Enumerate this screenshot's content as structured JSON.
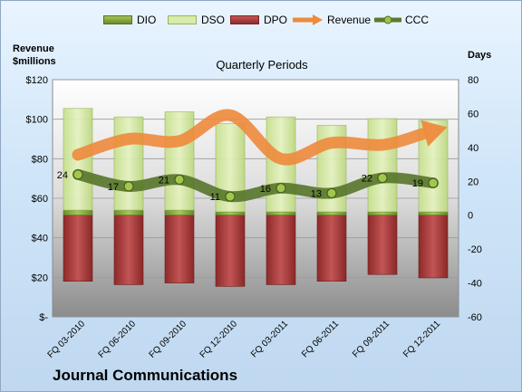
{
  "company": "Journal Communications",
  "chart_data": {
    "type": "bar",
    "title": "Quarterly Periods",
    "y_left_title": [
      "Revenue",
      "$millions"
    ],
    "y_right_title": "Days",
    "y_left_ticks": [
      "$120",
      "$100",
      "$80",
      "$60",
      "$40",
      "$20",
      "$-"
    ],
    "y_right_ticks": [
      "80",
      "60",
      "40",
      "20",
      "0",
      "-20",
      "-40",
      "-60"
    ],
    "y_left_range": [
      0,
      120
    ],
    "y_right_range": [
      -60,
      80
    ],
    "categories": [
      "FQ 03-2010",
      "FQ 06-2010",
      "FQ 09-2010",
      "FQ 12-2010",
      "FQ 03-2011",
      "FQ 06-2011",
      "FQ 09-2011",
      "FQ 12-2011"
    ],
    "legend": [
      "DIO",
      "DSO",
      "DPO",
      "Revenue",
      "CCC"
    ],
    "series": [
      {
        "name": "DIO",
        "axis": "right",
        "color": "#7e9d3a",
        "values": [
          3,
          3,
          3,
          2,
          2,
          2,
          2,
          2
        ]
      },
      {
        "name": "DSO",
        "axis": "right",
        "color": "#d4e8a6",
        "values": [
          60,
          55,
          58,
          52,
          56,
          51,
          55,
          54
        ]
      },
      {
        "name": "DPO",
        "axis": "right",
        "color": "#a83a3a",
        "values": [
          -39,
          -41,
          -40,
          -42,
          -41,
          -39,
          -35,
          -37
        ]
      },
      {
        "name": "Revenue",
        "axis": "left",
        "color": "#ee8a3c",
        "values": [
          82,
          90,
          89,
          102,
          80,
          88,
          87,
          94
        ]
      },
      {
        "name": "CCC",
        "axis": "right",
        "color": "#5b7a2e",
        "values": [
          24,
          17,
          21,
          11,
          16,
          13,
          22,
          19
        ]
      }
    ],
    "data_labels": [
      "24",
      "17",
      "21",
      "11",
      "16",
      "13",
      "22",
      "19"
    ],
    "grid": true,
    "legend_position": "top"
  }
}
